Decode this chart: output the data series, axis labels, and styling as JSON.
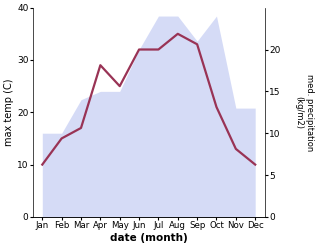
{
  "months": [
    "Jan",
    "Feb",
    "Mar",
    "Apr",
    "May",
    "Jun",
    "Jul",
    "Aug",
    "Sep",
    "Oct",
    "Nov",
    "Dec"
  ],
  "max_temp": [
    10,
    15,
    17,
    29,
    25,
    32,
    32,
    35,
    33,
    21,
    13,
    10
  ],
  "precipitation": [
    10,
    10,
    14,
    15,
    15,
    20,
    24,
    24,
    21,
    24,
    13,
    13
  ],
  "temp_color": "#993355",
  "precip_color_fill": "#b3bef0",
  "ylabel_left": "max temp (C)",
  "ylabel_right": "med. precipitation\n(kg/m2)",
  "xlabel": "date (month)",
  "ylim_left": [
    0,
    40
  ],
  "ylim_right": [
    0,
    25
  ],
  "yticks_left": [
    0,
    10,
    20,
    30,
    40
  ],
  "yticks_right": [
    0,
    5,
    10,
    15,
    20
  ],
  "temp_linewidth": 1.6,
  "fill_alpha": 0.55
}
